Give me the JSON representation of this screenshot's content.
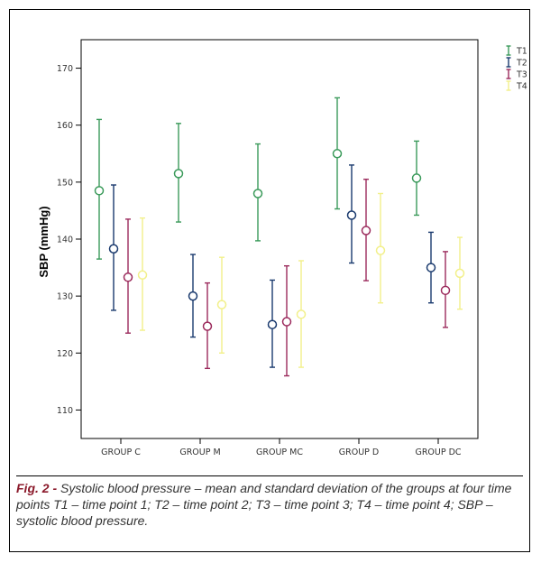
{
  "chart_data": {
    "type": "errorbar",
    "ylabel": "SBP (mmHg)",
    "xlabel": "",
    "ylim": [
      105,
      175
    ],
    "yticks": [
      110,
      120,
      130,
      140,
      150,
      160,
      170
    ],
    "categories": [
      "GROUP C",
      "GROUP M",
      "GROUP MC",
      "GROUP D",
      "GROUP DC"
    ],
    "legend_position": "top-right",
    "series": [
      {
        "name": "T1",
        "color": "#3a9a5a",
        "mean": [
          148.5,
          151.5,
          148.0,
          155.0,
          150.7
        ],
        "low": [
          136.5,
          143.0,
          139.7,
          145.3,
          144.2
        ],
        "high": [
          161.0,
          160.3,
          156.7,
          164.8,
          157.2
        ]
      },
      {
        "name": "T2",
        "color": "#1a3a6e",
        "mean": [
          138.3,
          130.0,
          125.0,
          144.2,
          135.0
        ],
        "low": [
          127.5,
          122.8,
          117.5,
          135.8,
          128.8
        ],
        "high": [
          149.5,
          137.3,
          132.8,
          153.0,
          141.2
        ]
      },
      {
        "name": "T3",
        "color": "#9b2a5c",
        "mean": [
          133.3,
          124.7,
          125.5,
          141.5,
          131.0
        ],
        "low": [
          123.5,
          117.3,
          116.0,
          132.7,
          124.5
        ],
        "high": [
          143.5,
          132.3,
          135.3,
          150.5,
          137.8
        ]
      },
      {
        "name": "T4",
        "color": "#f2f08a",
        "mean": [
          133.7,
          128.5,
          126.8,
          138.0,
          134.0
        ],
        "low": [
          124.0,
          120.0,
          117.5,
          128.8,
          127.7
        ],
        "high": [
          143.7,
          136.8,
          136.2,
          148.0,
          140.3
        ]
      }
    ]
  },
  "caption": {
    "label": "Fig. 2 -",
    "text": "Systolic blood pressure – mean and standard deviation of the groups at four time points T1 – time point 1; T2 – time point 2; T3 – time point 3; T4 – time point 4; SBP – systolic blood pressure."
  }
}
